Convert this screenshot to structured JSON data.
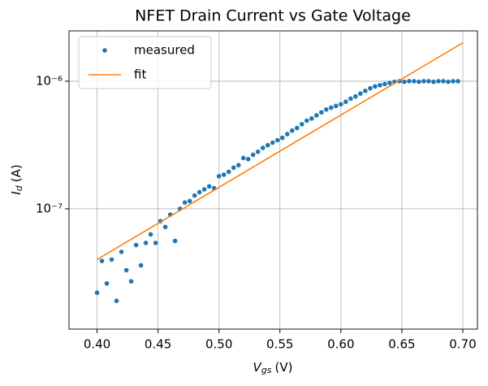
{
  "chart_data": {
    "type": "line",
    "title": "NFET Drain Current vs Gate Voltage",
    "xlabel": {
      "symbol": "V",
      "subscript": "gs",
      "unit": "(V)"
    },
    "ylabel": {
      "symbol": "I",
      "subscript": "d",
      "unit": "(A)"
    },
    "xlim": [
      0.377,
      0.712
    ],
    "xticks": [
      {
        "value": 0.4,
        "label": "0.40"
      },
      0.45,
      {
        "value": 0.5,
        "label": "0.50"
      },
      0.55,
      {
        "value": 0.6,
        "label": "0.60"
      },
      0.65,
      {
        "value": 0.7,
        "label": "0.70"
      }
    ],
    "ylim": [
      1.14e-08,
      2.48e-06
    ],
    "yticks": [
      {
        "value": 1e-07,
        "label": "10⁻⁷"
      },
      {
        "value": 1e-06,
        "label": "10⁻⁶"
      }
    ],
    "yscale": "log",
    "grid": true,
    "legend": "upper left",
    "series": [
      {
        "name": "measured",
        "color": "#1f77b4",
        "mode": "markers",
        "x": [
          0.4,
          0.404,
          0.408,
          0.412,
          0.416,
          0.42,
          0.424,
          0.428,
          0.432,
          0.436,
          0.44,
          0.444,
          0.448,
          0.452,
          0.456,
          0.46,
          0.464,
          0.468,
          0.472,
          0.476,
          0.48,
          0.484,
          0.488,
          0.492,
          0.496,
          0.5,
          0.504,
          0.508,
          0.512,
          0.516,
          0.52,
          0.524,
          0.528,
          0.532,
          0.536,
          0.54,
          0.544,
          0.548,
          0.552,
          0.556,
          0.56,
          0.564,
          0.568,
          0.572,
          0.576,
          0.58,
          0.584,
          0.588,
          0.592,
          0.596,
          0.6,
          0.604,
          0.608,
          0.612,
          0.616,
          0.62,
          0.624,
          0.628,
          0.632,
          0.636,
          0.64,
          0.644,
          0.648,
          0.652,
          0.656,
          0.66,
          0.664,
          0.668,
          0.672,
          0.676,
          0.68,
          0.684,
          0.688,
          0.692,
          0.696
        ],
        "values": [
          2.2e-08,
          3.9e-08,
          2.6e-08,
          4e-08,
          1.9e-08,
          4.6e-08,
          3.3e-08,
          2.7e-08,
          5.2e-08,
          3.6e-08,
          5.4e-08,
          6.3e-08,
          5.4e-08,
          8e-08,
          7.2e-08,
          9e-08,
          5.6e-08,
          1e-07,
          1.12e-07,
          1.15e-07,
          1.27e-07,
          1.35e-07,
          1.42e-07,
          1.5e-07,
          1.45e-07,
          1.8e-07,
          1.85e-07,
          1.95e-07,
          2.1e-07,
          2.2e-07,
          2.5e-07,
          2.45e-07,
          2.65e-07,
          2.8e-07,
          3e-07,
          3.15e-07,
          3.3e-07,
          3.45e-07,
          3.6e-07,
          3.85e-07,
          4.1e-07,
          4.3e-07,
          4.6e-07,
          4.9e-07,
          5.1e-07,
          5.4e-07,
          5.7e-07,
          6e-07,
          6.2e-07,
          6.4e-07,
          6.6e-07,
          6.9e-07,
          7.3e-07,
          7.6e-07,
          8e-07,
          8.4e-07,
          8.8e-07,
          9.1e-07,
          9.3e-07,
          9.5e-07,
          9.7e-07,
          9.9e-07,
          1e-06,
          9.9e-07,
          1e-06,
          1e-06,
          9.9e-07,
          1e-06,
          1e-06,
          9.9e-07,
          1e-06,
          1e-06,
          9.9e-07,
          1e-06,
          1e-06
        ]
      },
      {
        "name": "fit",
        "color": "#ff7f0e",
        "mode": "line",
        "x": [
          0.4,
          0.7
        ],
        "values": [
          4e-08,
          2e-06
        ]
      }
    ]
  }
}
